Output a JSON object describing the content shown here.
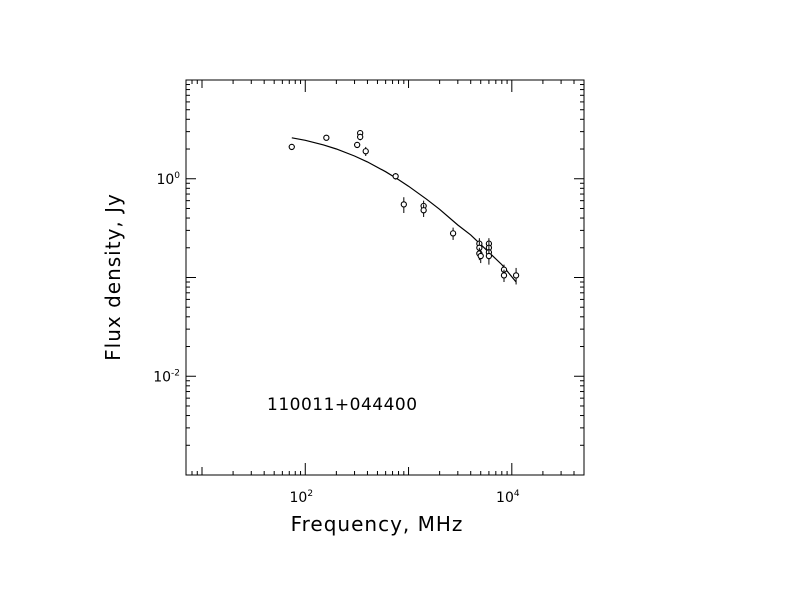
{
  "chart_data": {
    "type": "scatter",
    "title": "",
    "xlabel": "Frequency, MHz",
    "ylabel": "Flux density, Jy",
    "xscale": "log",
    "yscale": "log",
    "xlim": [
      7,
      50000
    ],
    "ylim": [
      0.001,
      10
    ],
    "grid": false,
    "legend": "none",
    "x_ticks": [
      {
        "base": "10",
        "exp": "2",
        "value": 100
      },
      {
        "base": "10",
        "exp": "4",
        "value": 10000
      }
    ],
    "y_ticks": [
      {
        "base": "10",
        "exp": "0",
        "value": 1
      },
      {
        "base": "10",
        "exp": "-2",
        "value": 0.01
      }
    ],
    "annotation": "110011+044400",
    "series": [
      {
        "kind": "points",
        "points": [
          {
            "x": 74,
            "y": 2.1,
            "err": 0.1
          },
          {
            "x": 160,
            "y": 2.6,
            "err": 0.1
          },
          {
            "x": 318,
            "y": 2.2,
            "err": 0.15
          },
          {
            "x": 340,
            "y": 2.9,
            "err": 0.2
          },
          {
            "x": 340,
            "y": 2.65,
            "err": 0.2
          },
          {
            "x": 385,
            "y": 1.9,
            "err": 0.2
          },
          {
            "x": 750,
            "y": 1.06,
            "err": 0.08
          },
          {
            "x": 900,
            "y": 0.55,
            "err": 0.1
          },
          {
            "x": 1400,
            "y": 0.53,
            "err": 0.07
          },
          {
            "x": 1400,
            "y": 0.48,
            "err": 0.07
          },
          {
            "x": 2700,
            "y": 0.28,
            "err": 0.04
          },
          {
            "x": 4850,
            "y": 0.22,
            "err": 0.03
          },
          {
            "x": 4850,
            "y": 0.2,
            "err": 0.03
          },
          {
            "x": 4850,
            "y": 0.175,
            "err": 0.025
          },
          {
            "x": 5000,
            "y": 0.165,
            "err": 0.025
          },
          {
            "x": 6000,
            "y": 0.22,
            "err": 0.03
          },
          {
            "x": 6000,
            "y": 0.2,
            "err": 0.03
          },
          {
            "x": 6000,
            "y": 0.18,
            "err": 0.03
          },
          {
            "x": 6000,
            "y": 0.165,
            "err": 0.03
          },
          {
            "x": 8400,
            "y": 0.12,
            "err": 0.015
          },
          {
            "x": 8400,
            "y": 0.105,
            "err": 0.015
          },
          {
            "x": 11000,
            "y": 0.105,
            "err": 0.02
          }
        ]
      },
      {
        "kind": "fit",
        "x": [
          74,
          100,
          150,
          200,
          300,
          400,
          600,
          800,
          1000,
          1500,
          2000,
          3000,
          4000,
          6000,
          8000,
          11000
        ],
        "y": [
          2.6,
          2.45,
          2.2,
          2.0,
          1.7,
          1.48,
          1.18,
          0.98,
          0.84,
          0.62,
          0.49,
          0.34,
          0.27,
          0.18,
          0.135,
          0.09
        ]
      }
    ]
  }
}
